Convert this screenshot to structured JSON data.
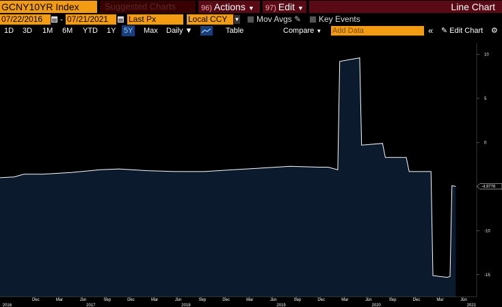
{
  "toolbar": {
    "security": "GCNY10YR Index",
    "suggested": "Suggested Charts",
    "suggested_num": "",
    "actions_num": "96)",
    "actions": "Actions",
    "edit_num": "97)",
    "edit": "Edit",
    "chart_type": "Line Chart"
  },
  "fields": {
    "start_date": "07/22/2016",
    "end_date": "07/21/2021",
    "price_field": "Last Px",
    "currency": "Local CCY",
    "mov_avgs": "Mov Avgs",
    "key_events": "Key Events"
  },
  "periods": [
    "1D",
    "3D",
    "1M",
    "6M",
    "YTD",
    "1Y",
    "5Y",
    "Max"
  ],
  "active_period": "5Y",
  "frequency": "Daily",
  "table_label": "Table",
  "compare_label": "Compare",
  "add_data_placeholder": "Add Data",
  "edit_chart_label": "Edit Chart",
  "colors": {
    "accent": "#f39c12",
    "menu": "#5a0a14",
    "fill": "#0b1a2c",
    "line": "#ffffff"
  },
  "chart_data": {
    "type": "area",
    "title": "",
    "last_value_label": "-4.9776",
    "ylim": [
      -17.5,
      10.5
    ],
    "yticks": [
      10,
      5,
      0,
      -5,
      -10,
      -15
    ],
    "xlim": [
      2016.55,
      2021.56
    ],
    "xticks": [
      {
        "x": 2016.917,
        "label": "Dec"
      },
      {
        "x": 2017.167,
        "label": "Mar"
      },
      {
        "x": 2017.417,
        "label": "Jun"
      },
      {
        "x": 2017.667,
        "label": "Sep"
      },
      {
        "x": 2017.917,
        "label": "Dec"
      },
      {
        "x": 2018.167,
        "label": "Mar"
      },
      {
        "x": 2018.417,
        "label": "Jun"
      },
      {
        "x": 2018.667,
        "label": "Sep"
      },
      {
        "x": 2018.917,
        "label": "Dec"
      },
      {
        "x": 2019.167,
        "label": "Mar"
      },
      {
        "x": 2019.417,
        "label": "Jun"
      },
      {
        "x": 2019.667,
        "label": "Sep"
      },
      {
        "x": 2019.917,
        "label": "Dec"
      },
      {
        "x": 2020.167,
        "label": "Mar"
      },
      {
        "x": 2020.417,
        "label": "Jun"
      },
      {
        "x": 2020.667,
        "label": "Sep"
      },
      {
        "x": 2020.917,
        "label": "Dec"
      },
      {
        "x": 2021.167,
        "label": "Mar"
      },
      {
        "x": 2021.417,
        "label": "Jun"
      }
    ],
    "years": [
      {
        "x": 2016.62,
        "label": "2016"
      },
      {
        "x": 2017.5,
        "label": "2017"
      },
      {
        "x": 2018.5,
        "label": "2018"
      },
      {
        "x": 2019.5,
        "label": "2019"
      },
      {
        "x": 2020.5,
        "label": "2020"
      },
      {
        "x": 2021.5,
        "label": "2021"
      }
    ],
    "series": [
      {
        "x": [
          2016.55,
          2016.7,
          2016.8,
          2017.0,
          2017.3,
          2017.6,
          2017.8,
          2018.1,
          2018.4,
          2018.7,
          2019.0,
          2019.3,
          2019.6,
          2019.9,
          2020.0,
          2020.1,
          2020.12,
          2020.33,
          2020.35,
          2020.57,
          2020.6,
          2020.82,
          2020.85,
          2021.08,
          2021.1,
          2021.25,
          2021.28,
          2021.3,
          2021.34
        ],
        "y": [
          -4.0,
          -3.9,
          -3.6,
          -3.6,
          -3.4,
          -3.1,
          -3.0,
          -3.2,
          -3.3,
          -3.3,
          -3.1,
          -2.9,
          -2.7,
          -2.8,
          -2.8,
          -3.1,
          9.2,
          9.6,
          -0.3,
          -0.1,
          -1.7,
          -1.7,
          -3.3,
          -3.3,
          -15.1,
          -15.3,
          -15.2,
          -4.9,
          -4.98
        ]
      }
    ]
  }
}
